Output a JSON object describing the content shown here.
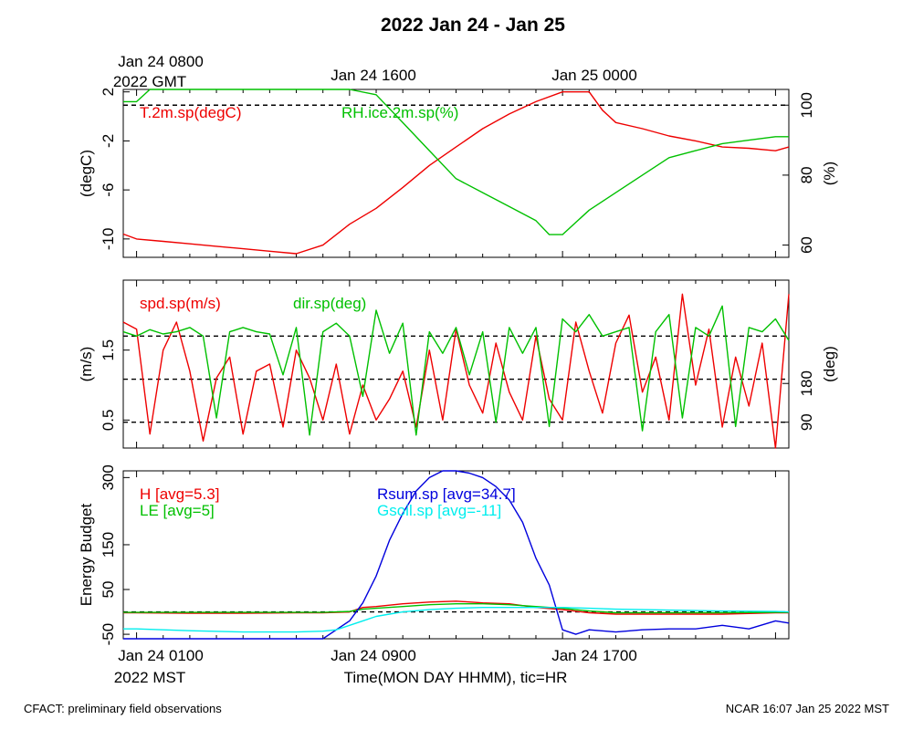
{
  "chart_data": {
    "title": "2022 Jan 24 - Jan 25",
    "footer_left": "CFACT: preliminary field observations",
    "footer_right": "NCAR 16:07 Jan 25 2022 MST",
    "top_axis": {
      "labels": [
        "Jan 24 0800",
        "Jan 24 1600",
        "Jan 25 0000"
      ],
      "sublabel": "2022 GMT",
      "hours": [
        0,
        8,
        16
      ]
    },
    "bottom_axis": {
      "labels": [
        "Jan 24 0100",
        "Jan 24 0900",
        "Jan 24 1700"
      ],
      "sublabel": "2022 MST",
      "xlabel": "Time(MON DAY HHMM), tic=HR",
      "hours": [
        0,
        8,
        16
      ]
    },
    "xlim": [
      -0.5,
      24.5
    ],
    "colors": {
      "red": "#ee0000",
      "green": "#00c000",
      "blue": "#0000dd",
      "cyan": "#00eeee"
    },
    "panels": [
      {
        "type": "line",
        "ylabel": "(degC)",
        "ylim": [
          -11.5,
          2.2
        ],
        "yticks": [
          -10,
          -6,
          -2,
          2
        ],
        "ytick_labels": [
          "-10",
          "-6",
          "-2",
          "2"
        ],
        "ylabel_right": "(%)",
        "ylim_right": [
          56.5,
          104.5
        ],
        "yticks_right": [
          60,
          80,
          100
        ],
        "ytick_labels_right": [
          "60",
          "80",
          "100"
        ],
        "ref_lines": [
          {
            "axis": "right",
            "value": 100
          }
        ],
        "series": [
          {
            "name": "T.2m.sp(degC)",
            "color": "red",
            "axis": "left",
            "x": [
              -0.5,
              0,
              1,
              2,
              3,
              4,
              5,
              6,
              7,
              8,
              9,
              10,
              11,
              12,
              13,
              14,
              15,
              16,
              17,
              17.5,
              18,
              19,
              20,
              21,
              22,
              23,
              24,
              24.5
            ],
            "y": [
              -9.6,
              -10.0,
              -10.2,
              -10.4,
              -10.6,
              -10.8,
              -11.0,
              -11.2,
              -10.5,
              -8.8,
              -7.5,
              -5.8,
              -4.0,
              -2.5,
              -1.0,
              0.2,
              1.2,
              2.0,
              2.0,
              0.5,
              -0.5,
              -1.0,
              -1.6,
              -2.0,
              -2.5,
              -2.6,
              -2.8,
              -2.5
            ]
          },
          {
            "name": "RH.ice.2m.sp(%)",
            "color": "green",
            "axis": "right",
            "x": [
              -0.5,
              0,
              0.5,
              1,
              2,
              3,
              4,
              5,
              6,
              7,
              8,
              9,
              10,
              11,
              12,
              13,
              14,
              15,
              15.5,
              16,
              17,
              18,
              19,
              20,
              21,
              22,
              23,
              24,
              24.5
            ],
            "y": [
              101,
              101,
              104.5,
              104.5,
              104.5,
              104.5,
              104.5,
              104.5,
              104.5,
              104.5,
              104.5,
              103,
              95,
              87,
              79,
              75,
              71,
              67,
              63,
              63,
              70,
              75,
              80,
              85,
              87,
              89,
              90,
              91,
              91
            ]
          }
        ],
        "legend": [
          "T.2m.sp(degC)",
          "RH.ice.2m.sp(%)"
        ]
      },
      {
        "type": "line",
        "ylabel": "(m/s)",
        "ylim": [
          0.1,
          2.5
        ],
        "yticks": [
          0.5,
          1.5
        ],
        "ytick_labels": [
          "0.5",
          "1.5"
        ],
        "ylabel_right": "(deg)",
        "ylim_right": [
          30,
          420
        ],
        "yticks_right": [
          90,
          180
        ],
        "ytick_labels_right": [
          "90",
          "180"
        ],
        "ref_lines": [
          {
            "axis": "right",
            "value": 90
          },
          {
            "axis": "right",
            "value": 190
          },
          {
            "axis": "right",
            "value": 290
          }
        ],
        "series": [
          {
            "name": "spd.sp(m/s)",
            "color": "red",
            "axis": "left",
            "x": [
              -0.5,
              0,
              0.5,
              1,
              1.5,
              2,
              2.5,
              3,
              3.5,
              4,
              4.5,
              5,
              5.5,
              6,
              6.5,
              7,
              7.5,
              8,
              8.5,
              9,
              9.5,
              10,
              10.5,
              11,
              11.5,
              12,
              12.5,
              13,
              13.5,
              14,
              14.5,
              15,
              15.5,
              16,
              16.5,
              17,
              17.5,
              18,
              18.5,
              19,
              19.5,
              20,
              20.5,
              21,
              21.5,
              22,
              22.5,
              23,
              23.5,
              24,
              24.5
            ],
            "y": [
              1.9,
              1.8,
              0.3,
              1.5,
              1.9,
              1.2,
              0.2,
              1.1,
              1.4,
              0.3,
              1.2,
              1.3,
              0.4,
              1.5,
              1.1,
              0.5,
              1.3,
              0.3,
              1.0,
              0.5,
              0.8,
              1.2,
              0.4,
              1.5,
              0.5,
              1.8,
              1.0,
              0.6,
              1.6,
              0.9,
              0.5,
              1.7,
              0.8,
              0.5,
              1.9,
              1.2,
              0.6,
              1.6,
              2.0,
              0.9,
              1.4,
              0.5,
              2.3,
              1.0,
              1.8,
              0.4,
              1.4,
              0.7,
              1.6,
              0.1,
              2.3
            ]
          },
          {
            "name": "dir.sp(deg)",
            "color": "green",
            "axis": "right",
            "x": [
              -0.5,
              0,
              0.5,
              1,
              1.5,
              2,
              2.5,
              3,
              3.5,
              4,
              4.5,
              5,
              5.5,
              6,
              6.5,
              7,
              7.5,
              8,
              8.5,
              9,
              9.5,
              10,
              10.5,
              11,
              11.5,
              12,
              12.5,
              13,
              13.5,
              14,
              14.5,
              15,
              15.5,
              16,
              16.5,
              17,
              17.5,
              18,
              18.5,
              19,
              19.5,
              20,
              20.5,
              21,
              21.5,
              22,
              22.5,
              23,
              23.5,
              24,
              24.5
            ],
            "y": [
              300,
              290,
              305,
              295,
              300,
              310,
              290,
              100,
              300,
              310,
              300,
              295,
              200,
              310,
              60,
              300,
              320,
              290,
              150,
              350,
              250,
              320,
              60,
              300,
              250,
              310,
              200,
              300,
              90,
              310,
              250,
              310,
              80,
              330,
              300,
              340,
              290,
              300,
              310,
              70,
              300,
              340,
              100,
              310,
              290,
              360,
              80,
              310,
              300,
              330,
              280
            ]
          }
        ],
        "legend": [
          "spd.sp(m/s)",
          "dir.sp(deg)"
        ]
      },
      {
        "type": "line",
        "ylabel": "Energy Budget",
        "ylim": [
          -60,
          315
        ],
        "yticks": [
          -50,
          50,
          150,
          300
        ],
        "ytick_labels": [
          "-50",
          "50",
          "150",
          "300"
        ],
        "ref_lines": [
          {
            "axis": "left",
            "value": 0
          }
        ],
        "series": [
          {
            "name": "H",
            "color": "red",
            "axis": "left",
            "x": [
              -0.5,
              0,
              2,
              4,
              6,
              7,
              8,
              8.5,
              9,
              10,
              11,
              12,
              13,
              14,
              15,
              16,
              17,
              18,
              20,
              22,
              24,
              24.5
            ],
            "y": [
              -2,
              -2,
              -3,
              -3,
              -2,
              -2,
              0,
              10,
              12,
              18,
              22,
              24,
              20,
              18,
              10,
              5,
              -2,
              -5,
              -5,
              -5,
              -2,
              -2
            ]
          },
          {
            "name": "LE",
            "color": "green",
            "axis": "left",
            "x": [
              -0.5,
              0,
              2,
              4,
              6,
              7,
              8,
              8.5,
              9,
              10,
              11,
              12,
              13,
              14,
              15,
              16,
              17,
              18,
              20,
              22,
              24,
              24.5
            ],
            "y": [
              -1,
              -1,
              -1,
              -1,
              -1,
              -1,
              1,
              6,
              8,
              12,
              16,
              18,
              18,
              16,
              12,
              8,
              2,
              -2,
              -2,
              -2,
              -1,
              -1
            ]
          },
          {
            "name": "Rsum.sp",
            "color": "blue",
            "axis": "left",
            "x": [
              -0.5,
              0,
              2,
              4,
              6,
              7,
              7.5,
              8,
              8.5,
              9,
              9.5,
              10,
              10.5,
              11,
              11.5,
              12,
              12.5,
              13,
              13.5,
              14,
              14.5,
              15,
              15.5,
              16,
              16.5,
              17,
              18,
              19,
              20,
              21,
              22,
              23,
              24,
              24.5
            ],
            "y": [
              -66,
              -66,
              -66,
              -66,
              -66,
              -60,
              -40,
              -20,
              20,
              80,
              160,
              220,
              270,
              300,
              315,
              315,
              310,
              300,
              280,
              250,
              200,
              120,
              60,
              -40,
              -50,
              -40,
              -45,
              -40,
              -38,
              -38,
              -30,
              -38,
              -20,
              -25
            ]
          },
          {
            "name": "Gsoil.sp",
            "color": "cyan",
            "axis": "left",
            "x": [
              -0.5,
              0,
              2,
              4,
              6,
              7,
              7.5,
              8,
              8.5,
              9,
              9.5,
              10,
              11,
              12,
              13,
              14,
              15,
              16,
              17,
              18,
              20,
              22,
              24,
              24.5
            ],
            "y": [
              -38,
              -38,
              -42,
              -45,
              -45,
              -43,
              -40,
              -30,
              -20,
              -10,
              -5,
              0,
              5,
              8,
              10,
              10,
              10,
              10,
              8,
              6,
              4,
              2,
              1,
              0
            ]
          }
        ],
        "legend": [
          "H [avg=5.3]",
          "LE [avg=5]",
          "Rsum.sp [avg=34.7]",
          "Gsoil.sp [avg=-11]"
        ]
      }
    ]
  }
}
